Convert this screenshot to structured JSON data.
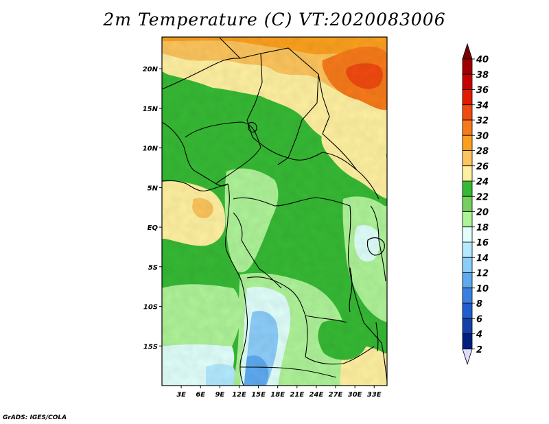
{
  "title": "2m Temperature (C) VT:2020083006",
  "credit": "GrADS: IGES/COLA",
  "map": {
    "lon_range": [
      0,
      35
    ],
    "lat_range": [
      -20,
      24
    ],
    "lat_ticks": [
      "20N",
      "15N",
      "10N",
      "5N",
      "EQ",
      "5S",
      "10S",
      "15S"
    ],
    "lat_values": [
      20,
      15,
      10,
      5,
      0,
      -5,
      -10,
      -15
    ],
    "lon_ticks": [
      "3E",
      "6E",
      "9E",
      "12E",
      "15E",
      "18E",
      "21E",
      "24E",
      "27E",
      "30E",
      "33E"
    ],
    "lon_values": [
      3,
      6,
      9,
      12,
      15,
      18,
      21,
      24,
      27,
      30,
      33
    ]
  },
  "colorbar": {
    "labels": [
      "40",
      "38",
      "36",
      "34",
      "32",
      "30",
      "28",
      "26",
      "24",
      "22",
      "20",
      "18",
      "16",
      "14",
      "12",
      "10",
      "8",
      "6",
      "4",
      "2"
    ],
    "colors": [
      "#a00000",
      "#c80000",
      "#e11a00",
      "#f04a10",
      "#f77a1a",
      "#fba01e",
      "#fcc45c",
      "#fff0a0",
      "#36b934",
      "#74cf5c",
      "#aef398",
      "#e0fffa",
      "#b3eaff",
      "#8ccdf9",
      "#5eaaf0",
      "#3a80df",
      "#1e5ecf",
      "#1440a8",
      "#001f80",
      "#dcdcff"
    ],
    "top_cap_color": "#7a0000",
    "bottom_cap_color": "#dcdcff"
  }
}
